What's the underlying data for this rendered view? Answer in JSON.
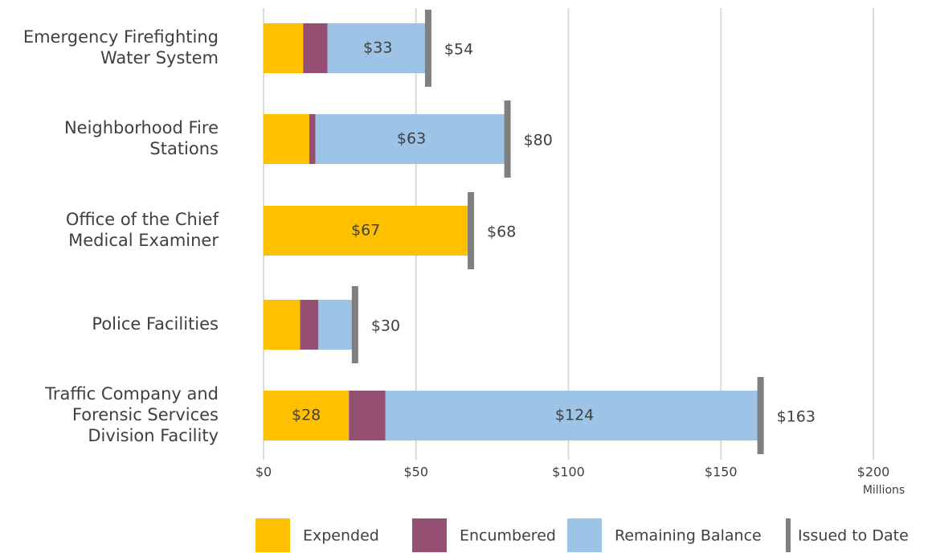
{
  "chart_data": {
    "type": "stacked-bar-horizontal",
    "categories": [
      [
        "Emergency Firefighting",
        "Water System"
      ],
      [
        "Neighborhood Fire",
        "Stations"
      ],
      [
        "Office of the Chief",
        "Medical Examiner"
      ],
      [
        "Police Facilities"
      ],
      [
        "Traffic Company and",
        "Forensic Services",
        "Division Facility"
      ]
    ],
    "series": [
      {
        "name": "Expended",
        "color": "#FFC000",
        "values": [
          13,
          15,
          67,
          12,
          28
        ],
        "value_labels": [
          null,
          null,
          "$67",
          null,
          "$28"
        ]
      },
      {
        "name": "Encumbered",
        "color": "#954F72",
        "values": [
          8,
          2,
          0,
          6,
          12
        ],
        "value_labels": [
          null,
          null,
          null,
          null,
          null
        ]
      },
      {
        "name": "Remaining Balance",
        "color": "#9DC3E6",
        "values": [
          33,
          63,
          0,
          11,
          124
        ],
        "value_labels": [
          "$33",
          "$63",
          null,
          null,
          "$124"
        ]
      }
    ],
    "marker": {
      "name": "Issued to Date",
      "color": "#7F7F7F",
      "values": [
        54,
        80,
        68,
        30,
        163
      ],
      "value_labels": [
        "$54",
        "$80",
        "$68",
        "$30",
        "$163"
      ]
    },
    "xlim": [
      0,
      200
    ],
    "xticks": [
      {
        "value": 0,
        "label": "$0"
      },
      {
        "value": 50,
        "label": "$50"
      },
      {
        "value": 100,
        "label": "$100"
      },
      {
        "value": 150,
        "label": "$150"
      },
      {
        "value": 200,
        "label": "$200"
      }
    ],
    "x_unit_label": "Millions",
    "grid": true,
    "legend": "bottom"
  }
}
